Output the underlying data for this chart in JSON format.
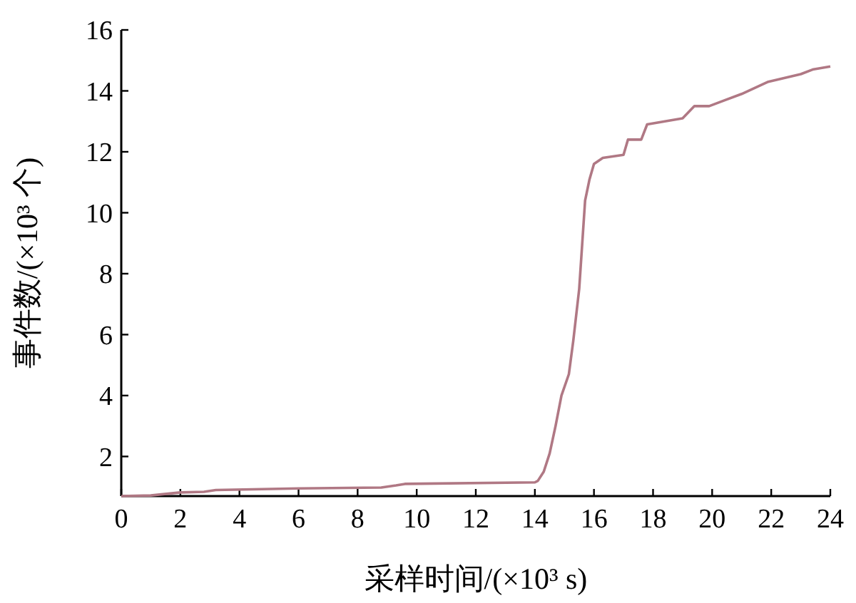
{
  "chart_data": {
    "type": "line",
    "xlabel": "采样时间/(×10³ s)",
    "ylabel": "事件数/(×10³ 个)",
    "xlim": [
      0,
      24
    ],
    "xticks": [
      0,
      2,
      4,
      6,
      8,
      10,
      12,
      14,
      16,
      18,
      20,
      22,
      24
    ],
    "ylim": [
      0.7,
      16
    ],
    "yticks": [
      2,
      4,
      6,
      8,
      10,
      12,
      14,
      16
    ],
    "grid": false,
    "x": [
      0,
      1,
      2,
      2.8,
      3.2,
      6,
      8.8,
      9.3,
      9.6,
      14,
      14.1,
      14.3,
      14.5,
      14.7,
      14.9,
      15.15,
      15.3,
      15.5,
      15.7,
      15.85,
      16,
      16.3,
      17,
      17.15,
      17.6,
      17.8,
      19,
      19.4,
      19.9,
      21,
      21.9,
      23,
      23.4,
      24
    ],
    "series": [
      {
        "color": "#b07884",
        "values": [
          0.7,
          0.72,
          0.82,
          0.84,
          0.9,
          0.95,
          0.98,
          1.05,
          1.1,
          1.15,
          1.2,
          1.5,
          2.1,
          3.0,
          4.0,
          4.7,
          5.8,
          7.5,
          10.4,
          11.1,
          11.6,
          11.8,
          11.9,
          12.4,
          12.4,
          12.9,
          13.1,
          13.5,
          13.5,
          13.9,
          14.3,
          14.55,
          14.7,
          14.8
        ]
      }
    ]
  }
}
